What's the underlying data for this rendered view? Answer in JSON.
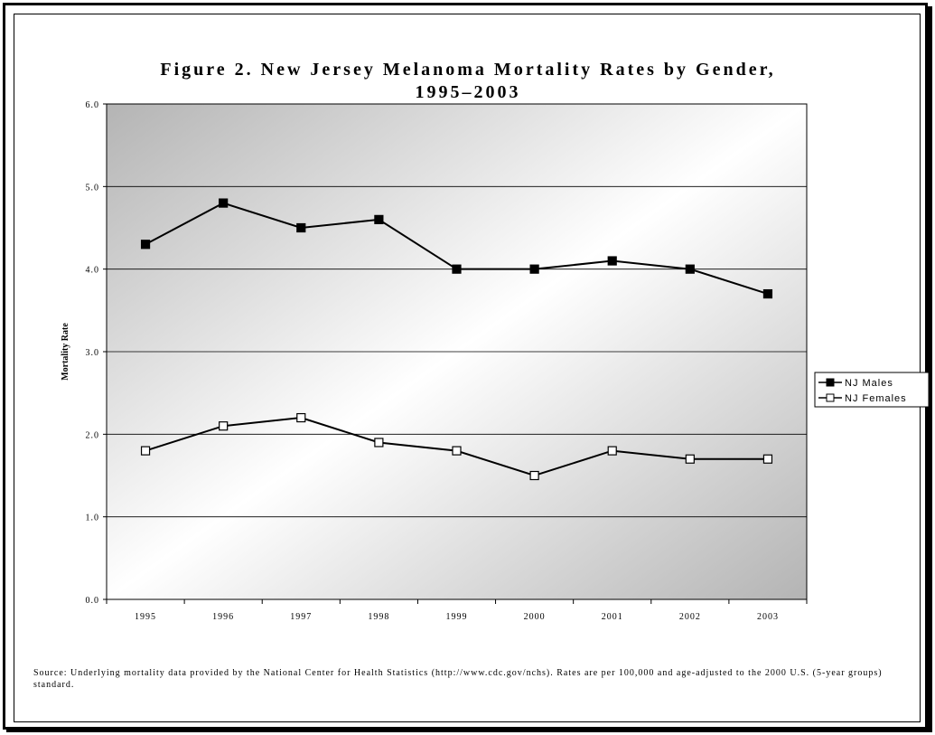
{
  "chart_data": {
    "type": "line",
    "title_line1": "Figure 2. New Jersey Melanoma Mortality Rates by Gender,",
    "title_line2": "1995–2003",
    "xlabel": "",
    "ylabel": "Mortality Rate",
    "ylim": [
      0,
      6
    ],
    "yticks": [
      "0.0",
      "1.0",
      "2.0",
      "3.0",
      "4.0",
      "5.0",
      "6.0"
    ],
    "grid": true,
    "legend_position": "right",
    "categories": [
      "1995",
      "1996",
      "1997",
      "1998",
      "1999",
      "2000",
      "2001",
      "2002",
      "2003"
    ],
    "series": [
      {
        "name": "NJ Males",
        "marker": "filled-square",
        "color": "#000000",
        "values": [
          4.3,
          4.8,
          4.5,
          4.6,
          4.0,
          4.0,
          4.1,
          4.0,
          3.7
        ]
      },
      {
        "name": "NJ Females",
        "marker": "open-square",
        "color": "#000000",
        "values": [
          1.8,
          2.1,
          2.2,
          1.9,
          1.8,
          1.5,
          1.8,
          1.7,
          1.7
        ]
      }
    ],
    "source_note": "Source: Underlying mortality data provided by the National Center for Health Statistics (http://www.cdc.gov/nchs). Rates are per 100,000 and age-adjusted to the 2000 U.S. (5-year groups) standard."
  },
  "colors": {
    "plot_gradient_dark": "#b4b4b4",
    "plot_gradient_light": "#ffffff",
    "line": "#000000"
  }
}
